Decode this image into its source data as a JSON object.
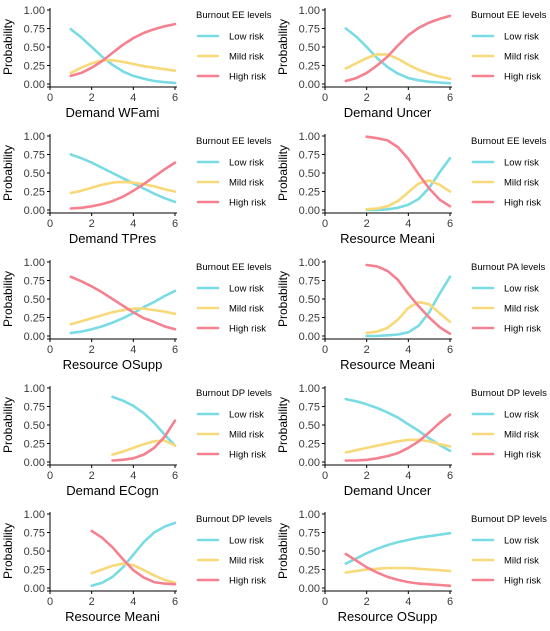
{
  "colors": {
    "Low risk": "#79dbe3",
    "Mild risk": "#f8d97a",
    "High risk": "#f5808f"
  },
  "chart_data": [
    {
      "type": "line",
      "xlabel": "Demand WFami",
      "ylabel": "Probability",
      "legend_title": "Burnout EE levels",
      "xlim": [
        0,
        6
      ],
      "ylim": [
        0,
        1
      ],
      "xticks": [
        "0",
        "2",
        "4",
        "6"
      ],
      "yticks": [
        "0.00",
        "0.25",
        "0.50",
        "0.75",
        "1.00"
      ],
      "x": [
        1,
        1.5,
        2,
        2.5,
        3,
        3.5,
        4,
        4.5,
        5,
        5.5,
        6
      ],
      "series": [
        {
          "name": "Low risk",
          "values": [
            0.74,
            0.63,
            0.5,
            0.37,
            0.26,
            0.17,
            0.11,
            0.07,
            0.04,
            0.025,
            0.015
          ]
        },
        {
          "name": "Mild risk",
          "values": [
            0.15,
            0.22,
            0.28,
            0.32,
            0.32,
            0.3,
            0.27,
            0.24,
            0.22,
            0.2,
            0.18
          ]
        },
        {
          "name": "High risk",
          "values": [
            0.11,
            0.15,
            0.22,
            0.31,
            0.42,
            0.53,
            0.62,
            0.69,
            0.74,
            0.78,
            0.81
          ]
        }
      ]
    },
    {
      "type": "line",
      "xlabel": "Demand Uncer",
      "ylabel": "Probability",
      "legend_title": "Burnout EE levels",
      "xlim": [
        0,
        6
      ],
      "ylim": [
        0,
        1
      ],
      "xticks": [
        "0",
        "2",
        "4",
        "6"
      ],
      "yticks": [
        "0.00",
        "0.25",
        "0.50",
        "0.75",
        "1.00"
      ],
      "x": [
        1,
        1.5,
        2,
        2.5,
        3,
        3.5,
        4,
        4.5,
        5,
        5.5,
        6
      ],
      "series": [
        {
          "name": "Low risk",
          "values": [
            0.75,
            0.64,
            0.5,
            0.35,
            0.23,
            0.14,
            0.08,
            0.05,
            0.03,
            0.02,
            0.01
          ]
        },
        {
          "name": "Mild risk",
          "values": [
            0.21,
            0.28,
            0.35,
            0.4,
            0.4,
            0.34,
            0.26,
            0.19,
            0.14,
            0.1,
            0.07
          ]
        },
        {
          "name": "High risk",
          "values": [
            0.04,
            0.08,
            0.15,
            0.25,
            0.37,
            0.52,
            0.66,
            0.76,
            0.83,
            0.88,
            0.92
          ]
        }
      ]
    },
    {
      "type": "line",
      "xlabel": "Demand TPres",
      "ylabel": "Probability",
      "legend_title": "Burnout EE levels",
      "xlim": [
        0,
        6
      ],
      "ylim": [
        0,
        1
      ],
      "xticks": [
        "0",
        "2",
        "4",
        "6"
      ],
      "yticks": [
        "0.00",
        "0.25",
        "0.50",
        "0.75",
        "1.00"
      ],
      "x": [
        1,
        1.5,
        2,
        2.5,
        3,
        3.5,
        4,
        4.5,
        5,
        5.5,
        6
      ],
      "series": [
        {
          "name": "Low risk",
          "values": [
            0.75,
            0.7,
            0.64,
            0.57,
            0.5,
            0.43,
            0.36,
            0.29,
            0.22,
            0.16,
            0.11
          ]
        },
        {
          "name": "Mild risk",
          "values": [
            0.23,
            0.26,
            0.3,
            0.34,
            0.37,
            0.38,
            0.37,
            0.35,
            0.32,
            0.28,
            0.25
          ]
        },
        {
          "name": "High risk",
          "values": [
            0.02,
            0.03,
            0.05,
            0.08,
            0.12,
            0.18,
            0.26,
            0.35,
            0.45,
            0.55,
            0.64
          ]
        }
      ]
    },
    {
      "type": "line",
      "xlabel": "Resource Meani",
      "ylabel": "Probability",
      "legend_title": "Burnout EE levels",
      "xlim": [
        0,
        6
      ],
      "ylim": [
        0,
        1
      ],
      "xticks": [
        "0",
        "2",
        "4",
        "6"
      ],
      "yticks": [
        "0.00",
        "0.25",
        "0.50",
        "0.75",
        "1.00"
      ],
      "x": [
        2,
        2.5,
        3,
        3.5,
        4,
        4.5,
        5,
        5.5,
        6
      ],
      "series": [
        {
          "name": "Low risk",
          "values": [
            0.0,
            0.0,
            0.01,
            0.03,
            0.07,
            0.15,
            0.3,
            0.51,
            0.7
          ]
        },
        {
          "name": "Mild risk",
          "values": [
            0.01,
            0.02,
            0.05,
            0.12,
            0.24,
            0.36,
            0.4,
            0.34,
            0.25
          ]
        },
        {
          "name": "High risk",
          "values": [
            0.99,
            0.97,
            0.94,
            0.85,
            0.69,
            0.48,
            0.29,
            0.14,
            0.05
          ]
        }
      ]
    },
    {
      "type": "line",
      "xlabel": "Resource OSupp",
      "ylabel": "Probability",
      "legend_title": "Burnout EE levels",
      "xlim": [
        0,
        6
      ],
      "ylim": [
        0,
        1
      ],
      "xticks": [
        "0",
        "2",
        "4",
        "6"
      ],
      "yticks": [
        "0.00",
        "0.25",
        "0.50",
        "0.75",
        "1.00"
      ],
      "x": [
        1,
        1.5,
        2,
        2.5,
        3,
        3.5,
        4,
        4.5,
        5,
        5.5,
        6
      ],
      "series": [
        {
          "name": "Low risk",
          "values": [
            0.04,
            0.06,
            0.09,
            0.13,
            0.18,
            0.24,
            0.31,
            0.39,
            0.46,
            0.54,
            0.61
          ]
        },
        {
          "name": "Mild risk",
          "values": [
            0.16,
            0.2,
            0.24,
            0.28,
            0.32,
            0.35,
            0.37,
            0.37,
            0.35,
            0.33,
            0.3
          ]
        },
        {
          "name": "High risk",
          "values": [
            0.8,
            0.74,
            0.67,
            0.59,
            0.5,
            0.41,
            0.32,
            0.24,
            0.19,
            0.13,
            0.09
          ]
        }
      ]
    },
    {
      "type": "line",
      "xlabel": "Resource Meani",
      "ylabel": "Probability",
      "legend_title": "Burnout PA levels",
      "xlim": [
        0,
        6
      ],
      "ylim": [
        0,
        1
      ],
      "xticks": [
        "0",
        "2",
        "4",
        "6"
      ],
      "yticks": [
        "0.00",
        "0.25",
        "0.50",
        "0.75",
        "1.00"
      ],
      "x": [
        2,
        2.5,
        3,
        3.5,
        4,
        4.5,
        5,
        5.5,
        6
      ],
      "series": [
        {
          "name": "Low risk",
          "values": [
            0.0,
            0.0,
            0.01,
            0.02,
            0.05,
            0.14,
            0.32,
            0.57,
            0.8
          ]
        },
        {
          "name": "Mild risk",
          "values": [
            0.04,
            0.06,
            0.11,
            0.22,
            0.38,
            0.46,
            0.43,
            0.31,
            0.19
          ]
        },
        {
          "name": "High risk",
          "values": [
            0.96,
            0.94,
            0.88,
            0.76,
            0.57,
            0.4,
            0.25,
            0.12,
            0.03
          ]
        }
      ]
    },
    {
      "type": "line",
      "xlabel": "Demand ECogn",
      "ylabel": "Probability",
      "legend_title": "Burnout DP levels",
      "xlim": [
        0,
        6
      ],
      "ylim": [
        0,
        1
      ],
      "xticks": [
        "0",
        "2",
        "4",
        "6"
      ],
      "yticks": [
        "0.00",
        "0.25",
        "0.50",
        "0.75",
        "1.00"
      ],
      "x": [
        3,
        3.5,
        4,
        4.5,
        5,
        5.5,
        6
      ],
      "series": [
        {
          "name": "Low risk",
          "values": [
            0.88,
            0.83,
            0.76,
            0.66,
            0.53,
            0.37,
            0.22
          ]
        },
        {
          "name": "Mild risk",
          "values": [
            0.1,
            0.14,
            0.19,
            0.24,
            0.28,
            0.29,
            0.22
          ]
        },
        {
          "name": "High risk",
          "values": [
            0.02,
            0.03,
            0.05,
            0.1,
            0.19,
            0.34,
            0.56
          ]
        }
      ]
    },
    {
      "type": "line",
      "xlabel": "Demand Uncer",
      "ylabel": "Probability",
      "legend_title": "Burnout DP levels",
      "xlim": [
        0,
        6
      ],
      "ylim": [
        0,
        1
      ],
      "xticks": [
        "0",
        "2",
        "4",
        "6"
      ],
      "yticks": [
        "0.00",
        "0.25",
        "0.50",
        "0.75",
        "1.00"
      ],
      "x": [
        1,
        1.5,
        2,
        2.5,
        3,
        3.5,
        4,
        4.5,
        5,
        5.5,
        6
      ],
      "series": [
        {
          "name": "Low risk",
          "values": [
            0.85,
            0.82,
            0.78,
            0.73,
            0.67,
            0.6,
            0.51,
            0.42,
            0.32,
            0.23,
            0.15
          ]
        },
        {
          "name": "Mild risk",
          "values": [
            0.13,
            0.16,
            0.19,
            0.22,
            0.25,
            0.28,
            0.3,
            0.3,
            0.28,
            0.24,
            0.21
          ]
        },
        {
          "name": "High risk",
          "values": [
            0.02,
            0.02,
            0.03,
            0.05,
            0.08,
            0.12,
            0.19,
            0.28,
            0.4,
            0.53,
            0.64
          ]
        }
      ]
    },
    {
      "type": "line",
      "xlabel": "Resource Meani",
      "ylabel": "Probability",
      "legend_title": "Burnout DP levels",
      "xlim": [
        0,
        6
      ],
      "ylim": [
        0,
        1
      ],
      "xticks": [
        "0",
        "2",
        "4",
        "6"
      ],
      "yticks": [
        "0.00",
        "0.25",
        "0.50",
        "0.75",
        "1.00"
      ],
      "x": [
        2,
        2.5,
        3,
        3.5,
        4,
        4.5,
        5,
        5.5,
        6
      ],
      "series": [
        {
          "name": "Low risk",
          "values": [
            0.03,
            0.07,
            0.15,
            0.28,
            0.45,
            0.62,
            0.75,
            0.83,
            0.88
          ]
        },
        {
          "name": "Mild risk",
          "values": [
            0.2,
            0.25,
            0.3,
            0.33,
            0.31,
            0.24,
            0.17,
            0.11,
            0.07
          ]
        },
        {
          "name": "High risk",
          "values": [
            0.77,
            0.68,
            0.55,
            0.39,
            0.24,
            0.14,
            0.08,
            0.06,
            0.05
          ]
        }
      ]
    },
    {
      "type": "line",
      "xlabel": "Resource OSupp",
      "ylabel": "Probability",
      "legend_title": "Burnout DP levels",
      "xlim": [
        0,
        6
      ],
      "ylim": [
        0,
        1
      ],
      "xticks": [
        "0",
        "2",
        "4",
        "6"
      ],
      "yticks": [
        "0.00",
        "0.25",
        "0.50",
        "0.75",
        "1.00"
      ],
      "x": [
        1,
        1.5,
        2,
        2.5,
        3,
        3.5,
        4,
        4.5,
        5,
        5.5,
        6
      ],
      "series": [
        {
          "name": "Low risk",
          "values": [
            0.33,
            0.4,
            0.47,
            0.53,
            0.58,
            0.62,
            0.65,
            0.68,
            0.7,
            0.72,
            0.74
          ]
        },
        {
          "name": "Mild risk",
          "values": [
            0.21,
            0.23,
            0.25,
            0.26,
            0.27,
            0.27,
            0.27,
            0.26,
            0.25,
            0.24,
            0.23
          ]
        },
        {
          "name": "High risk",
          "values": [
            0.46,
            0.37,
            0.28,
            0.21,
            0.15,
            0.11,
            0.08,
            0.06,
            0.05,
            0.04,
            0.03
          ]
        }
      ]
    }
  ]
}
